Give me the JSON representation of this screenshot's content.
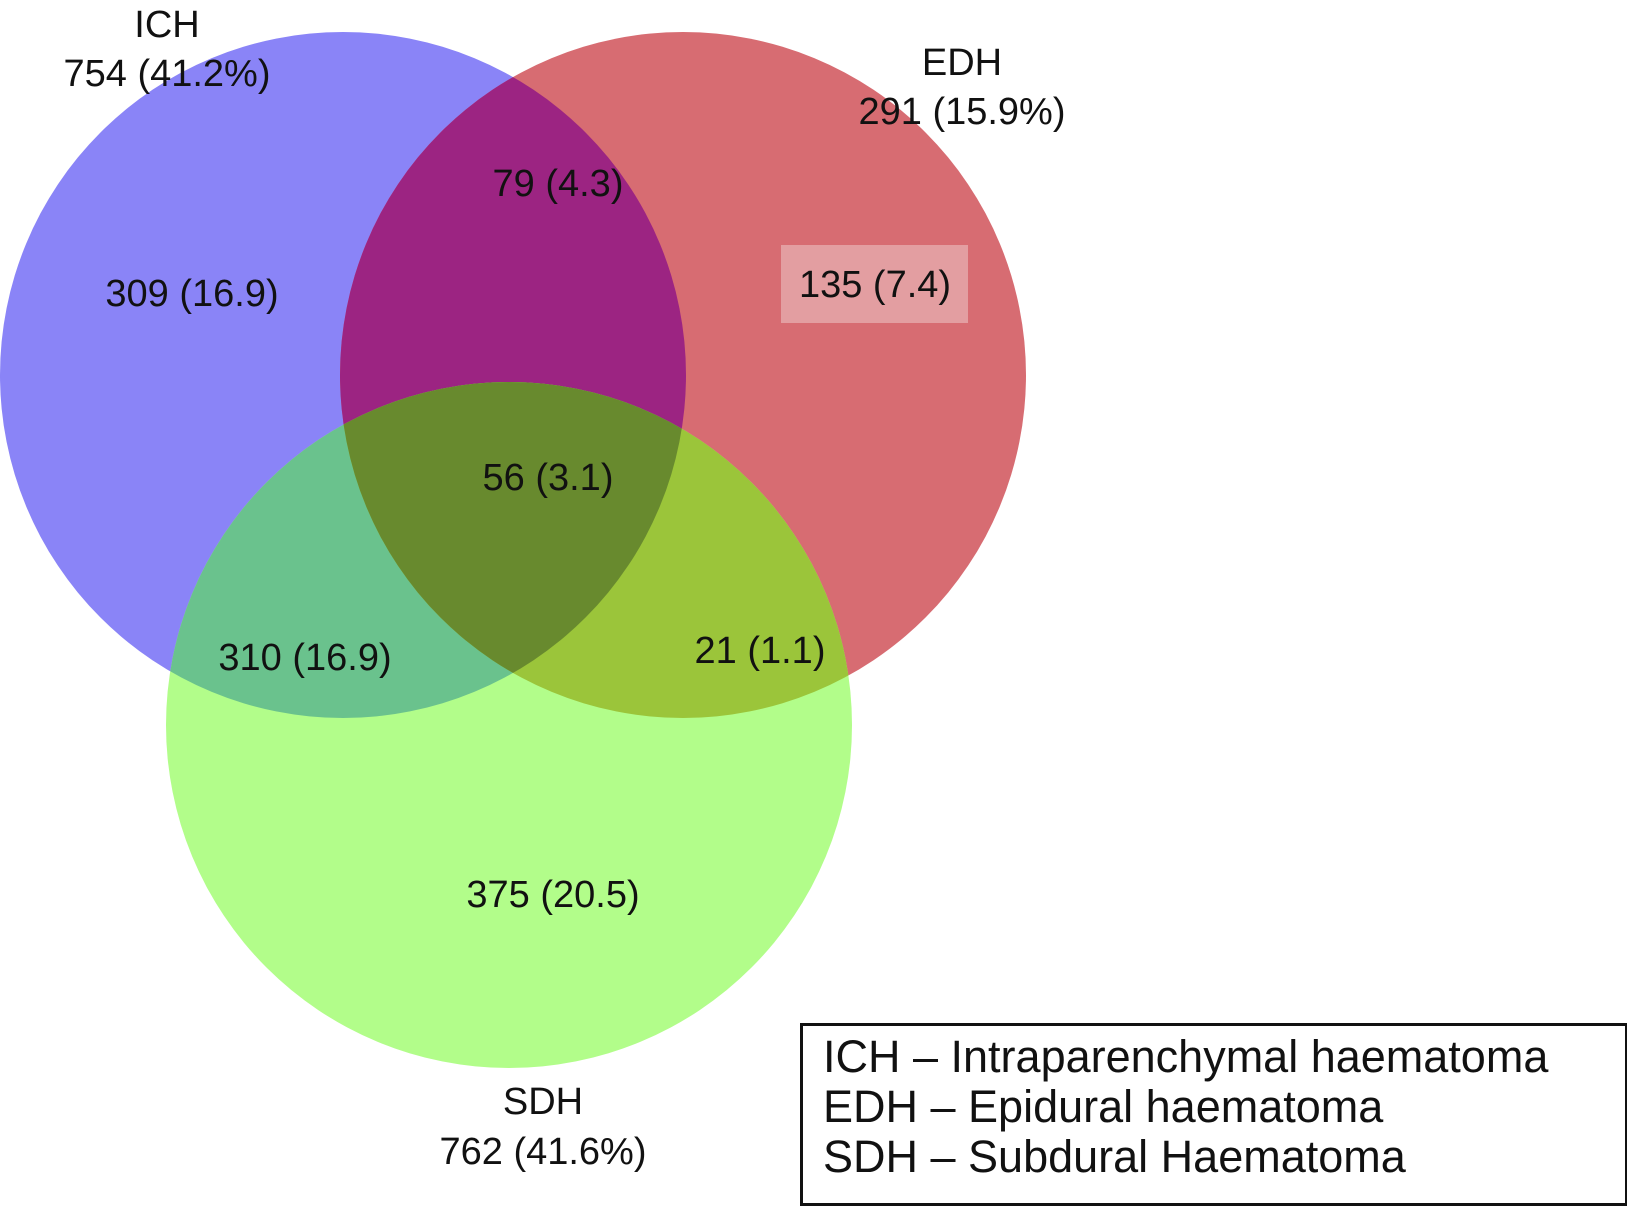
{
  "sets": [
    {
      "key": "ich",
      "name": "ICH",
      "total": "754 (41.2%)",
      "color": "#8a84f7"
    },
    {
      "key": "edh",
      "name": "EDH",
      "total": "291 (15.9%)",
      "color": "#d76c72"
    },
    {
      "key": "sdh",
      "name": "SDH",
      "total": "762 (41.6%)",
      "color": "#b2fd8a"
    }
  ],
  "regions": {
    "ich_only": "309 (16.9)",
    "edh_only": "135 (7.4)",
    "sdh_only": "375 (20.5)",
    "ich_edh": "79 (4.3)",
    "ich_sdh": "310 (16.9)",
    "edh_sdh": "21 (1.1)",
    "all_three": "56 (3.1)"
  },
  "region_colors": {
    "ich_edh": "#9c2482",
    "ich_sdh": "#6ac28d",
    "edh_sdh": "#9bc53a",
    "all_three": "#688a2e"
  },
  "legend": [
    "ICH – Intraparenchymal haematoma",
    "EDH – Epidural haematoma",
    "SDH – Subdural Haematoma"
  ]
}
